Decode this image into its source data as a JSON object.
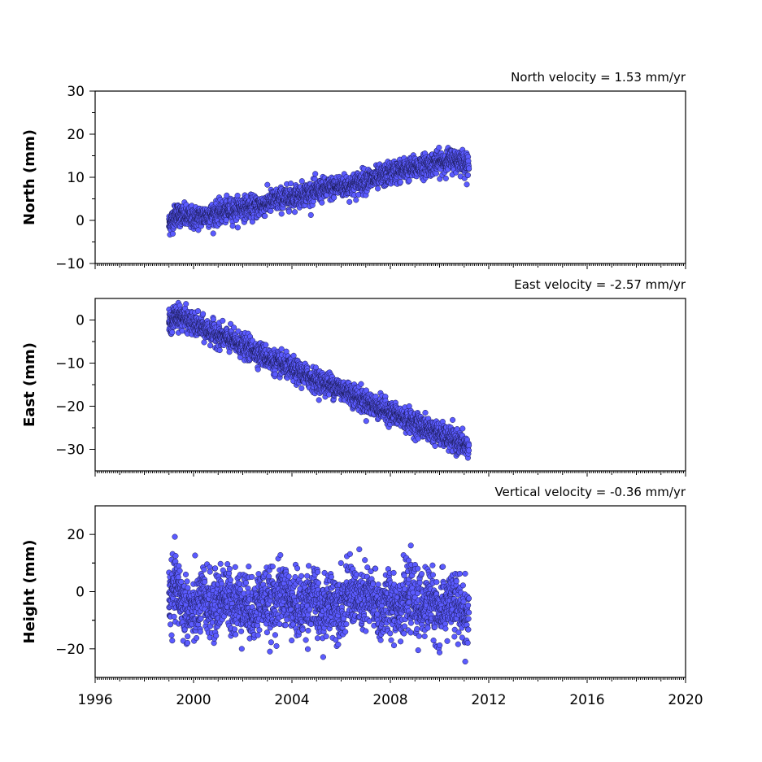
{
  "chart_data": [
    {
      "type": "scatter",
      "title": "",
      "annotation": "North velocity = 1.53 mm/yr",
      "xlabel": "",
      "ylabel": "North (mm)",
      "xlim": [
        1996,
        2020
      ],
      "ylim": [
        -10,
        30
      ],
      "yticks": [
        -10,
        0,
        10,
        20,
        30
      ],
      "xticks": [
        1996,
        2000,
        2004,
        2008,
        2012,
        2016,
        2020
      ],
      "xtick_labels_visible": false,
      "color": "#5b5bff",
      "series": [
        {
          "x": [
            1999.0,
            1999.3,
            1999.6,
            2000.0,
            2000.4,
            2000.8,
            2001.2,
            2001.6,
            2002.0,
            2002.4,
            2002.8,
            2003.2,
            2003.6,
            2004.0,
            2004.4,
            2004.8,
            2005.2,
            2005.6,
            2006.0,
            2006.4,
            2006.8,
            2007.2,
            2007.6,
            2008.0,
            2008.4,
            2008.8,
            2009.2,
            2009.6,
            2010.0,
            2010.4,
            2010.8,
            2011.2
          ],
          "y": [
            -1.0,
            1.5,
            1.0,
            0.5,
            1.0,
            1.5,
            2.0,
            2.5,
            3.0,
            3.0,
            3.5,
            4.5,
            5.0,
            5.5,
            6.0,
            6.5,
            7.0,
            7.5,
            8.0,
            8.0,
            9.0,
            9.5,
            10.0,
            11.0,
            11.5,
            12.0,
            12.5,
            13.0,
            13.5,
            14.0,
            14.0,
            13.0
          ]
        }
      ]
    },
    {
      "type": "scatter",
      "title": "",
      "annotation": "East velocity = -2.57 mm/yr",
      "xlabel": "",
      "ylabel": "East (mm)",
      "xlim": [
        1996,
        2020
      ],
      "ylim": [
        -35,
        5
      ],
      "yticks": [
        -30,
        -20,
        -10,
        0
      ],
      "xticks": [
        1996,
        2000,
        2004,
        2008,
        2012,
        2016,
        2020
      ],
      "xtick_labels_visible": false,
      "color": "#5b5bff",
      "series": [
        {
          "x": [
            1999.0,
            1999.3,
            1999.6,
            2000.0,
            2000.4,
            2000.8,
            2001.2,
            2001.6,
            2002.0,
            2002.4,
            2002.8,
            2003.2,
            2003.6,
            2004.0,
            2004.4,
            2004.8,
            2005.2,
            2005.6,
            2006.0,
            2006.4,
            2006.8,
            2007.2,
            2007.6,
            2008.0,
            2008.4,
            2008.8,
            2009.2,
            2009.6,
            2010.0,
            2010.4,
            2010.8,
            2011.2
          ],
          "y": [
            -1.0,
            1.0,
            0.5,
            -1.0,
            -2.0,
            -3.0,
            -4.0,
            -5.0,
            -6.0,
            -7.0,
            -8.0,
            -9.5,
            -10.5,
            -11.5,
            -12.5,
            -13.5,
            -14.5,
            -15.0,
            -16.0,
            -17.0,
            -18.5,
            -19.5,
            -20.5,
            -21.5,
            -22.5,
            -23.5,
            -24.5,
            -25.5,
            -26.5,
            -27.5,
            -28.5,
            -29.5
          ]
        }
      ]
    },
    {
      "type": "scatter",
      "title": "",
      "annotation": "Vertical velocity = -0.36 mm/yr",
      "xlabel": "",
      "ylabel": "Height (mm)",
      "xlim": [
        1996,
        2020
      ],
      "ylim": [
        -30,
        30
      ],
      "yticks": [
        -20,
        0,
        20
      ],
      "xticks": [
        1996,
        2000,
        2004,
        2008,
        2012,
        2016,
        2020
      ],
      "xtick_labels_visible": true,
      "color": "#5b5bff",
      "series": [
        {
          "x": [
            1999.0,
            1999.3,
            1999.6,
            2000.0,
            2000.4,
            2000.8,
            2001.2,
            2001.6,
            2002.0,
            2002.4,
            2002.8,
            2003.2,
            2003.6,
            2004.0,
            2004.4,
            2004.8,
            2005.2,
            2005.6,
            2006.0,
            2006.4,
            2006.8,
            2007.2,
            2007.6,
            2008.0,
            2008.4,
            2008.8,
            2009.2,
            2009.6,
            2010.0,
            2010.4,
            2010.8,
            2011.2
          ],
          "y": [
            -3.0,
            2.0,
            -5.0,
            -8.0,
            -2.0,
            -6.0,
            -1.0,
            -4.0,
            -3.0,
            -7.0,
            -2.0,
            -5.0,
            0.0,
            -4.0,
            -6.0,
            -1.0,
            -8.0,
            -3.0,
            -5.0,
            0.0,
            -4.0,
            -2.0,
            -7.0,
            -3.0,
            -5.0,
            -1.0,
            -6.0,
            -2.0,
            -8.0,
            -3.0,
            -6.0,
            -9.0
          ]
        }
      ]
    }
  ]
}
